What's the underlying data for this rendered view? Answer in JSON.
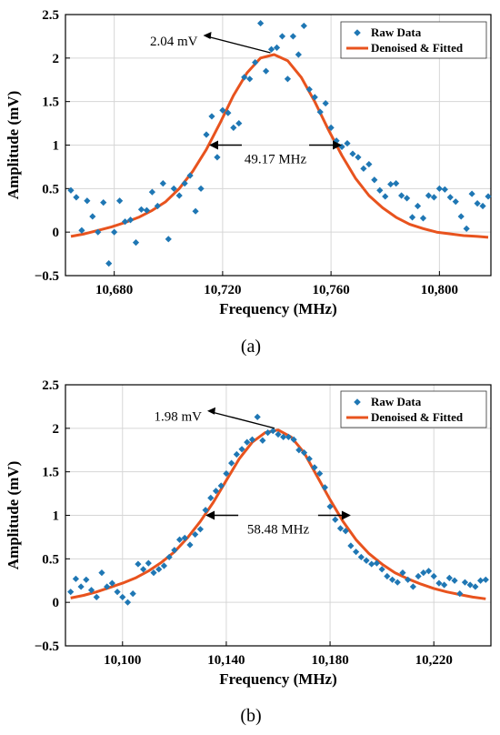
{
  "colors": {
    "raw": "#1f77b4",
    "fit": "#e8531e",
    "axis": "#000000",
    "grid": "#d6d6d6"
  },
  "chart_data": [
    {
      "type": "scatter",
      "caption": "(a)",
      "xlabel": "Frequency (MHz)",
      "ylabel": "Amplitude (mV)",
      "xlim": [
        10662,
        10819
      ],
      "ylim": [
        -0.5,
        2.5
      ],
      "xticks": [
        10680,
        10720,
        10760,
        10800
      ],
      "xtick_labels": [
        "10,680",
        "10,720",
        "10,760",
        "10,800"
      ],
      "yticks": [
        -0.5,
        0,
        0.5,
        1,
        1.5,
        2,
        2.5
      ],
      "ytick_labels": [
        "−0.5",
        "0",
        "0.5",
        "1",
        "1.5",
        "2",
        "2.5"
      ],
      "grid": true,
      "legend_position": "top-right",
      "series": [
        {
          "name": "Raw Data",
          "kind": "scatter",
          "x": [
            10664,
            10666,
            10668,
            10670,
            10672,
            10674,
            10676,
            10678,
            10680,
            10682,
            10684,
            10686,
            10688,
            10690,
            10692,
            10694,
            10696,
            10698,
            10700,
            10702,
            10704,
            10706,
            10708,
            10710,
            10712,
            10714,
            10716,
            10718,
            10720,
            10722,
            10724,
            10726,
            10728,
            10730,
            10732,
            10734,
            10736,
            10738,
            10740,
            10742,
            10744,
            10746,
            10748,
            10750,
            10752,
            10754,
            10756,
            10758,
            10760,
            10762,
            10764,
            10766,
            10768,
            10770,
            10772,
            10774,
            10776,
            10778,
            10780,
            10782,
            10784,
            10786,
            10788,
            10790,
            10792,
            10794,
            10796,
            10798,
            10800,
            10802,
            10804,
            10806,
            10808,
            10810,
            10812,
            10814,
            10816,
            10818
          ],
          "y": [
            0.48,
            0.4,
            0.02,
            0.36,
            0.18,
            0.0,
            0.34,
            -0.36,
            0.0,
            0.36,
            0.12,
            0.14,
            -0.12,
            0.26,
            0.25,
            0.46,
            0.3,
            0.56,
            -0.08,
            0.5,
            0.42,
            0.56,
            0.65,
            0.24,
            0.5,
            1.12,
            1.33,
            0.86,
            1.4,
            1.37,
            1.2,
            1.25,
            1.78,
            1.76,
            1.95,
            2.4,
            1.85,
            2.1,
            2.12,
            2.25,
            1.76,
            2.25,
            2.04,
            2.37,
            1.64,
            1.55,
            1.38,
            1.48,
            1.2,
            1.05,
            0.98,
            1.02,
            0.9,
            0.86,
            0.73,
            0.78,
            0.6,
            0.48,
            0.41,
            0.55,
            0.56,
            0.42,
            0.39,
            0.17,
            0.3,
            0.16,
            0.42,
            0.4,
            0.5,
            0.49,
            0.4,
            0.35,
            0.18,
            0.04,
            0.44,
            0.33,
            0.3,
            0.41
          ]
        },
        {
          "name": "Denoised & Fitted",
          "kind": "line",
          "x": [
            10664,
            10669,
            10674,
            10679,
            10684,
            10689,
            10694,
            10699,
            10704,
            10709,
            10714,
            10719,
            10724,
            10729,
            10734,
            10739,
            10744,
            10749,
            10754,
            10759,
            10764,
            10769,
            10774,
            10779,
            10784,
            10789,
            10794,
            10799,
            10804,
            10809,
            10814,
            10818
          ],
          "y": [
            -0.05,
            -0.02,
            0.02,
            0.06,
            0.11,
            0.17,
            0.25,
            0.35,
            0.5,
            0.7,
            0.95,
            1.25,
            1.57,
            1.83,
            2.0,
            2.04,
            1.97,
            1.78,
            1.5,
            1.18,
            0.88,
            0.62,
            0.42,
            0.28,
            0.17,
            0.09,
            0.04,
            0.0,
            -0.02,
            -0.04,
            -0.05,
            -0.06
          ]
        }
      ],
      "annotations": {
        "peak_label": "2.04 mV",
        "peak_x": 10739,
        "peak_y": 2.04,
        "width_label": "49.17 MHz",
        "width_left": 10715,
        "width_right": 10764,
        "width_y": 1.0
      }
    },
    {
      "type": "scatter",
      "caption": "(b)",
      "xlabel": "Frequency (MHz)",
      "ylabel": "Amplitude (mV)",
      "xlim": [
        10078,
        10242
      ],
      "ylim": [
        -0.5,
        2.5
      ],
      "xticks": [
        10100,
        10140,
        10180,
        10220
      ],
      "xtick_labels": [
        "10,100",
        "10,140",
        "10,180",
        "10,220"
      ],
      "yticks": [
        -0.5,
        0,
        0.5,
        1,
        1.5,
        2,
        2.5
      ],
      "ytick_labels": [
        "−0.5",
        "0",
        "0.5",
        "1",
        "1.5",
        "2",
        "2.5"
      ],
      "grid": true,
      "legend_position": "top-right",
      "series": [
        {
          "name": "Raw Data",
          "kind": "scatter",
          "x": [
            10080,
            10082,
            10084,
            10086,
            10088,
            10090,
            10092,
            10094,
            10096,
            10098,
            10100,
            10102,
            10104,
            10106,
            10108,
            10110,
            10112,
            10114,
            10116,
            10118,
            10120,
            10122,
            10124,
            10126,
            10128,
            10130,
            10132,
            10134,
            10136,
            10138,
            10140,
            10142,
            10144,
            10146,
            10148,
            10150,
            10152,
            10154,
            10156,
            10158,
            10160,
            10162,
            10164,
            10166,
            10168,
            10170,
            10172,
            10174,
            10176,
            10178,
            10180,
            10182,
            10184,
            10186,
            10188,
            10190,
            10192,
            10194,
            10196,
            10198,
            10200,
            10202,
            10204,
            10206,
            10208,
            10210,
            10212,
            10214,
            10216,
            10218,
            10220,
            10222,
            10224,
            10226,
            10228,
            10230,
            10232,
            10234,
            10236,
            10238,
            10240
          ],
          "y": [
            0.12,
            0.27,
            0.18,
            0.26,
            0.14,
            0.06,
            0.34,
            0.18,
            0.22,
            0.12,
            0.06,
            0.0,
            0.1,
            0.44,
            0.38,
            0.45,
            0.34,
            0.38,
            0.42,
            0.52,
            0.6,
            0.72,
            0.74,
            0.66,
            0.78,
            0.84,
            1.06,
            1.2,
            1.28,
            1.34,
            1.48,
            1.6,
            1.7,
            1.76,
            1.84,
            1.87,
            2.13,
            1.86,
            1.95,
            1.97,
            1.93,
            1.9,
            1.9,
            1.87,
            1.75,
            1.72,
            1.65,
            1.55,
            1.48,
            1.32,
            1.1,
            0.95,
            0.85,
            0.82,
            0.65,
            0.58,
            0.52,
            0.48,
            0.44,
            0.45,
            0.38,
            0.3,
            0.26,
            0.23,
            0.34,
            0.26,
            0.18,
            0.3,
            0.34,
            0.36,
            0.3,
            0.22,
            0.2,
            0.28,
            0.25,
            0.1,
            0.23,
            0.2,
            0.18,
            0.25,
            0.26
          ]
        },
        {
          "name": "Denoised & Fitted",
          "kind": "line",
          "x": [
            10080,
            10085,
            10090,
            10095,
            10100,
            10105,
            10110,
            10115,
            10120,
            10125,
            10130,
            10135,
            10140,
            10145,
            10150,
            10155,
            10160,
            10165,
            10170,
            10175,
            10180,
            10185,
            10190,
            10195,
            10200,
            10205,
            10210,
            10215,
            10220,
            10225,
            10230,
            10235,
            10240
          ],
          "y": [
            0.05,
            0.08,
            0.12,
            0.17,
            0.22,
            0.28,
            0.36,
            0.46,
            0.58,
            0.74,
            0.93,
            1.15,
            1.4,
            1.65,
            1.84,
            1.95,
            1.98,
            1.9,
            1.72,
            1.45,
            1.18,
            0.93,
            0.72,
            0.56,
            0.44,
            0.34,
            0.27,
            0.21,
            0.16,
            0.12,
            0.09,
            0.06,
            0.04
          ]
        }
      ],
      "annotations": {
        "peak_label": "1.98 mV",
        "peak_x": 10160,
        "peak_y": 1.98,
        "width_label": "58.48 MHz",
        "width_left": 10132,
        "width_right": 10188,
        "width_y": 1.0
      }
    }
  ]
}
